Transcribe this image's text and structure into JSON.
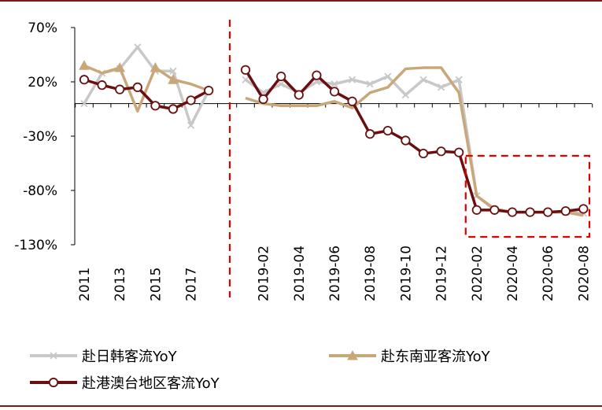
{
  "chart_data": {
    "type": "line",
    "title": "",
    "xlabel": "",
    "ylabel": "",
    "ylim": [
      -130,
      70
    ],
    "yticks": [
      "70%",
      "20%",
      "-30%",
      "-80%",
      "-130%"
    ],
    "ytick_values": [
      70,
      20,
      -30,
      -80,
      -130
    ],
    "panels": [
      {
        "name": "annual",
        "x": [
          "2011",
          "2012",
          "2013",
          "2014",
          "2015",
          "2016",
          "2017",
          "2018"
        ],
        "xtick_labels": [
          "2011",
          "2013",
          "2015",
          "2017"
        ],
        "xtick_index": [
          0,
          2,
          4,
          6
        ]
      },
      {
        "name": "monthly",
        "x": [
          "2019-01",
          "2019-02",
          "2019-03",
          "2019-04",
          "2019-05",
          "2019-06",
          "2019-07",
          "2019-08",
          "2019-09",
          "2019-10",
          "2019-11",
          "2019-12",
          "2020-01",
          "2020-02",
          "2020-03",
          "2020-04",
          "2020-05",
          "2020-06",
          "2020-07",
          "2020-08"
        ],
        "xtick_labels": [
          "2019-02",
          "2019-04",
          "2019-06",
          "2019-08",
          "2019-10",
          "2019-12",
          "2020-02",
          "2020-04",
          "2020-06",
          "2020-08"
        ],
        "xtick_index": [
          1,
          3,
          5,
          7,
          9,
          11,
          13,
          15,
          17,
          19
        ]
      }
    ],
    "series": [
      {
        "name": "赴日韩客流YoY",
        "color": "#c8c8c8",
        "marker": "x",
        "annual": [
          0,
          28,
          32,
          52,
          30,
          30,
          -20,
          12
        ],
        "monthly": [
          22,
          10,
          18,
          10,
          20,
          18,
          22,
          18,
          25,
          8,
          22,
          15,
          22,
          -85,
          -98,
          -100,
          -100,
          -100,
          -100,
          -101
        ]
      },
      {
        "name": "赴东南亚客流YoY",
        "color": "#c8a87a",
        "marker": "triangle",
        "annual": [
          35,
          28,
          33,
          -7,
          33,
          22,
          18,
          12
        ],
        "monthly": [
          5,
          0,
          -2,
          -2,
          -2,
          2,
          -4,
          10,
          15,
          32,
          33,
          33,
          10,
          -85,
          -97,
          -100,
          -100,
          -100,
          -100,
          -103
        ]
      },
      {
        "name": "赴港澳台地区客流YoY",
        "color": "#6a0f0f",
        "marker": "circle",
        "annual": [
          22,
          17,
          13,
          15,
          -2,
          -5,
          3,
          12
        ],
        "monthly": [
          31,
          4,
          25,
          8,
          26,
          11,
          2,
          -28,
          -25,
          -34,
          -46,
          -44,
          -45,
          -98,
          -98,
          -100,
          -100,
          -100,
          -99,
          -97
        ]
      }
    ],
    "legend": {
      "placement": "bottom",
      "items": [
        "赴日韩客流YoY",
        "赴东南亚客流YoY",
        "赴港澳台地区客流YoY"
      ]
    },
    "annotations": {
      "divider": "dashed red vertical line separating annual and monthly data",
      "highlight_box": "dashed red rectangle around 2020-02 to 2020-08",
      "highlight_color": "#e00000"
    }
  }
}
